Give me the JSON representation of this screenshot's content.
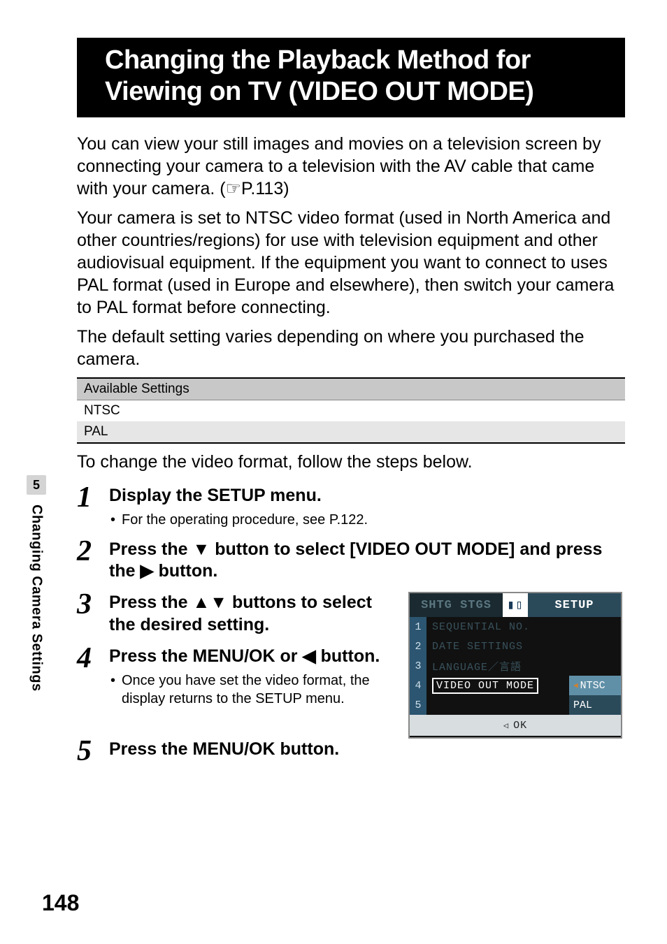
{
  "side": {
    "section_number": "5",
    "section_title": "Changing Camera Settings"
  },
  "title": "Changing the Playback Method for Viewing on TV (VIDEO OUT MODE)",
  "para1a": "You can view your still images and movies on a television screen by connecting your camera to a television with the AV cable that came with your camera. (",
  "para1b": "P.113)",
  "para2": "Your camera is set to NTSC video format (used in North America and other countries/regions) for use with television equipment and other audiovisual equipment. If the equipment you want to connect to uses PAL format (used in Europe and elsewhere), then switch your camera to PAL format before connecting.",
  "para3": "The default setting varies depending on where you purchased the camera.",
  "table": {
    "header": "Available Settings",
    "rows": [
      "NTSC",
      "PAL"
    ]
  },
  "lead": "To change the video format, follow the steps below.",
  "steps": {
    "s1": {
      "num": "1",
      "head": "Display the SETUP menu.",
      "sub": "For the operating procedure, see P.122."
    },
    "s2": {
      "num": "2",
      "head_a": "Press the ",
      "head_b": " button to select [VIDEO OUT MODE] and press the ",
      "head_c": " button.",
      "arrow_down": "▼",
      "arrow_right": "▶"
    },
    "s3": {
      "num": "3",
      "head_a": "Press the ",
      "head_b": " buttons to select the desired setting.",
      "arrows_updown": "▲▼"
    },
    "s4": {
      "num": "4",
      "head_a": "Press the MENU/OK or ",
      "head_b": " button.",
      "arrow_left": "◀",
      "sub": "Once you have set the video format, the display returns to the SETUP menu."
    },
    "s5": {
      "num": "5",
      "head": "Press the MENU/OK button."
    }
  },
  "lcd": {
    "tab_muted": "SHTG STGS",
    "tab_sep": "▮▯",
    "tab_active": "SETUP",
    "rows": [
      {
        "n": "1",
        "t": "SEQUENTIAL NO."
      },
      {
        "n": "2",
        "t": "DATE SETTINGS"
      },
      {
        "n": "3",
        "t": "LANGUAGE／言語"
      },
      {
        "n": "4",
        "t": "VIDEO OUT MODE",
        "val": "NTSC",
        "sel": true
      },
      {
        "n": "5",
        "t": "",
        "val": "PAL"
      }
    ],
    "footer_tri": "◁",
    "footer_txt": "OK"
  },
  "page_number": "148"
}
